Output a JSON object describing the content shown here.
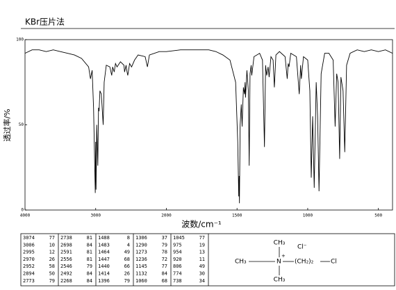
{
  "chart_data": {
    "type": "line",
    "title": "KBr压片法",
    "x_label": "波数/cm⁻¹",
    "y_label": "透过率/%",
    "xlim": [
      4000,
      400
    ],
    "x_scale_break": 2000,
    "xticks": [
      4000,
      3000,
      2000,
      1500,
      1000,
      500
    ],
    "ylim": [
      0,
      100
    ],
    "yticks": [
      0,
      50,
      100
    ],
    "color": "#000000",
    "x": [
      4000,
      3900,
      3800,
      3700,
      3600,
      3500,
      3400,
      3300,
      3200,
      3100,
      3074,
      3050,
      3030,
      3006,
      3000,
      2995,
      2985,
      2970,
      2960,
      2952,
      2940,
      2920,
      2894,
      2880,
      2850,
      2800,
      2773,
      2760,
      2738,
      2720,
      2698,
      2650,
      2600,
      2591,
      2570,
      2556,
      2546,
      2520,
      2492,
      2450,
      2400,
      2300,
      2268,
      2240,
      2100,
      2000,
      1900,
      1800,
      1700,
      1650,
      1600,
      1550,
      1510,
      1495,
      1488,
      1485,
      1483,
      1478,
      1470,
      1464,
      1455,
      1447,
      1443,
      1440,
      1430,
      1420,
      1414,
      1408,
      1400,
      1396,
      1380,
      1340,
      1320,
      1306,
      1298,
      1290,
      1280,
      1273,
      1260,
      1245,
      1236,
      1225,
      1200,
      1160,
      1145,
      1138,
      1132,
      1120,
      1080,
      1060,
      1050,
      1045,
      1030,
      1000,
      985,
      975,
      965,
      954,
      940,
      930,
      920,
      905,
      880,
      850,
      820,
      806,
      795,
      785,
      774,
      765,
      750,
      738,
      725,
      700,
      650,
      600,
      550,
      500,
      450,
      400
    ],
    "values": [
      92,
      94,
      94,
      93,
      94,
      93,
      92,
      91,
      89,
      84,
      77,
      82,
      60,
      10,
      40,
      12,
      50,
      26,
      60,
      58,
      70,
      68,
      50,
      75,
      85,
      84,
      79,
      84,
      81,
      86,
      84,
      87,
      85,
      81,
      85,
      81,
      79,
      86,
      84,
      88,
      91,
      90,
      84,
      91,
      93,
      93,
      94,
      94,
      94,
      93,
      91,
      88,
      75,
      40,
      8,
      20,
      4,
      50,
      62,
      49,
      72,
      68,
      75,
      66,
      82,
      70,
      26,
      80,
      85,
      79,
      90,
      92,
      88,
      37,
      85,
      79,
      84,
      78,
      90,
      88,
      72,
      91,
      93,
      90,
      77,
      86,
      84,
      92,
      90,
      68,
      85,
      77,
      90,
      88,
      70,
      19,
      55,
      13,
      75,
      55,
      11,
      80,
      92,
      92,
      88,
      49,
      80,
      75,
      30,
      78,
      70,
      34,
      85,
      92,
      94,
      93,
      94,
      93,
      94,
      92
    ]
  },
  "peak_table": {
    "rows": [
      [
        3074,
        77,
        2738,
        81,
        1488,
        8,
        1306,
        37,
        1045,
        77
      ],
      [
        3006,
        10,
        2698,
        84,
        1483,
        4,
        1290,
        79,
        975,
        19
      ],
      [
        2995,
        12,
        2591,
        81,
        1464,
        49,
        1273,
        78,
        954,
        13
      ],
      [
        2970,
        26,
        2556,
        81,
        1447,
        68,
        1236,
        72,
        920,
        11
      ],
      [
        2952,
        58,
        2546,
        79,
        1440,
        66,
        1145,
        77,
        806,
        49
      ],
      [
        2894,
        50,
        2492,
        84,
        1414,
        26,
        1132,
        84,
        774,
        30
      ],
      [
        2773,
        79,
        2268,
        84,
        1396,
        79,
        1060,
        68,
        738,
        34
      ]
    ]
  },
  "structure": {
    "top": "CH₃",
    "anion": "Cl⁻",
    "left": "CH₃",
    "center": "N",
    "charge": "+",
    "chain": "(CH₂)₂",
    "end": "Cl",
    "bottom": "CH₃"
  }
}
